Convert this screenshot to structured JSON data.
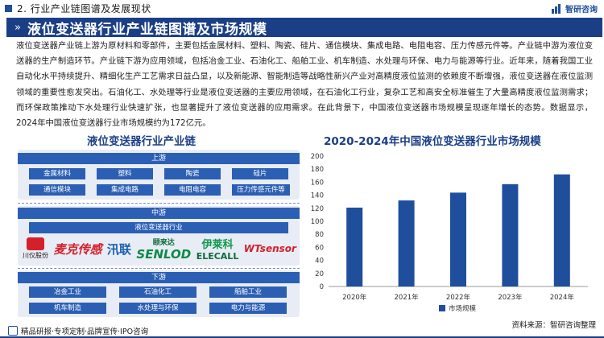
{
  "header": {
    "section": "2. 行业产业链图谱及发展现状",
    "logo_text": "智研咨询"
  },
  "banner": {
    "title": "液位变送器行业产业链图谱及市场规模"
  },
  "paragraph": "液位变送器产业链上游为原材料和零部件，主要包括金属材料、塑料、陶瓷、硅片、通信模块、集成电路、电阻电容、压力传感元件等。产业链中游为液位变送器的生产制造环节。产业链下游为应用领域，包括冶金工业、石油化工、船舶工业、机车制造、水处理与环保、电力与能源等行业。近年来，随着我国工业自动化水平持续提升、精细化生产工艺需求日益凸显，以及新能源、智能制造等战略性新兴产业对高精度液位监测的依赖度不断增强，液位变送器在液位监测领域的重要性愈发突出。石油化工、水处理等行业是液位变送器的主要应用领域，在石油化工行业，复杂工艺和高安全标准催生了大量高精度液位监测需求；而环保政策推动下水处理行业快速扩张，也显著提升了液位变送器的应用需求。在此背景下，中国液位变送器市场规模呈现逐年增长的态势。数据显示，2024年中国液位变送器行业市场规模约为172亿元。",
  "chain": {
    "title": "液位变送器行业产业链",
    "upstream": {
      "label": "上游",
      "items": [
        "金属材料",
        "塑料",
        "陶瓷",
        "硅片",
        "通信模块",
        "集成电路",
        "电阻电容",
        "压力传感元件等"
      ]
    },
    "midstream": {
      "label": "中游",
      "bar": "液位变送器行业",
      "companies": {
        "c1_text": "川仪股份",
        "c2_text": "麦克传感",
        "c3_text": "汛联",
        "c4_cn": "颐来达",
        "c4_en": "SENLOD",
        "c5_cn": "伊莱科",
        "c5_en": "ELECALL",
        "c6_text": "WTsensor"
      }
    },
    "downstream": {
      "label": "下游",
      "items": [
        "冶金工业",
        "石油化工",
        "船舶工业",
        "机车制造",
        "水处理与环保",
        "电力与能源"
      ]
    }
  },
  "chart_title": "2020-2024年中国液位变送器行业市场规模",
  "chart_data": {
    "type": "bar",
    "categories": [
      "2020年",
      "2021年",
      "2022年",
      "2023年",
      "2024年"
    ],
    "series": [
      {
        "name": "市场规模",
        "values": [
          121,
          132,
          144,
          157,
          172
        ],
        "color": "#1f4e9c"
      }
    ],
    "ylim": [
      0,
      200
    ],
    "yticks": [
      0,
      20,
      40,
      60,
      80,
      100,
      120,
      140,
      160,
      180,
      200
    ],
    "grid": false,
    "legend": "bottom"
  },
  "footer": {
    "left": "精品研报·专项定制·品牌宣传·IPO咨询",
    "right": "资料来源：智研咨询整理"
  },
  "colors": {
    "primary": "#1b3f86",
    "tile": "#2b5fb4",
    "panel": "#e8ecf5"
  }
}
